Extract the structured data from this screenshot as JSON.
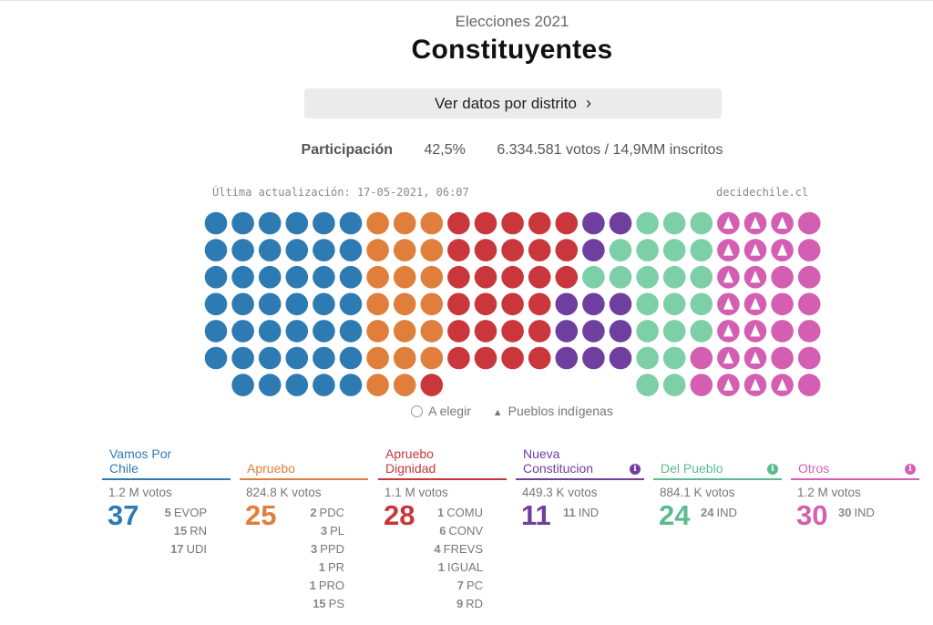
{
  "header": {
    "subtitle": "Elecciones 2021",
    "title": "Constituyentes",
    "district_button": "Ver datos por distrito",
    "chevron": "›"
  },
  "participation": {
    "label": "Participación",
    "percent": "42,5%",
    "detail": "6.334.581 votos / 14,9MM inscritos"
  },
  "updated": "Última actualización: 17-05-2021, 06:07",
  "site": "decidechile.cl",
  "legend": {
    "to_elect": "A elegir",
    "indigenous": "Pueblos indígenas"
  },
  "colors": {
    "blue": "#2e7bb4",
    "orange": "#e07e3c",
    "red": "#c9363b",
    "purple": "#6f3f9f",
    "green": "#7ccfa6",
    "pink": "#d45fb2"
  },
  "hemicycle": {
    "columns": [
      [
        "blue",
        6
      ],
      [
        "blue",
        7
      ],
      [
        "blue",
        7
      ],
      [
        "blue",
        7
      ],
      [
        "blue",
        7
      ],
      [
        "blue",
        7
      ],
      [
        "orange",
        7
      ],
      [
        "orange",
        7
      ],
      [
        "orange",
        7
      ],
      [
        "red",
        6
      ],
      [
        "red",
        6
      ],
      [
        "red",
        6
      ],
      [
        "red",
        6
      ],
      [
        "red",
        6
      ],
      [
        "purple",
        6
      ],
      [
        "purple",
        6
      ],
      [
        "green",
        7
      ],
      [
        "green",
        7
      ],
      [
        "green",
        7
      ],
      [
        "pink",
        7
      ],
      [
        "pink",
        7
      ],
      [
        "pink",
        7
      ],
      [
        "pink",
        7
      ]
    ],
    "column_starts": [
      0,
      0,
      0,
      0,
      0,
      0,
      0,
      0,
      0,
      0,
      0,
      0,
      0,
      0,
      0,
      0,
      0,
      0,
      0,
      0,
      0,
      0,
      0
    ],
    "overrides": [
      {
        "col": 7,
        "row": 1,
        "color": "orange"
      },
      {
        "col": 8,
        "row": 6,
        "color": "red"
      },
      {
        "col": 13,
        "row": 3,
        "color": "purple"
      },
      {
        "col": 13,
        "row": 4,
        "color": "purple"
      },
      {
        "col": 13,
        "row": 5,
        "color": "purple"
      },
      {
        "col": 14,
        "row": 2,
        "color": "green"
      },
      {
        "col": 14,
        "row": 3,
        "color": "purple"
      },
      {
        "col": 15,
        "row": 1,
        "color": "green"
      },
      {
        "col": 15,
        "row": 2,
        "color": "green"
      },
      {
        "col": 18,
        "row": 5,
        "color": "pink"
      },
      {
        "col": 18,
        "row": 6,
        "color": "pink"
      }
    ],
    "empty": [
      {
        "col": 9,
        "row": 6
      },
      {
        "col": 10,
        "row": 6
      },
      {
        "col": 11,
        "row": 6
      },
      {
        "col": 12,
        "row": 6
      },
      {
        "col": 13,
        "row": 6
      },
      {
        "col": 14,
        "row": 6
      },
      {
        "col": 15,
        "row": 6
      }
    ],
    "indigenous_cols": [
      19,
      20,
      21
    ],
    "indigenous_rows": {
      "19": [
        0,
        1,
        2,
        3,
        4,
        5,
        6
      ],
      "20": [
        0,
        1,
        2,
        3,
        4,
        5,
        6
      ],
      "21": [
        0,
        1,
        6
      ]
    }
  },
  "parties": [
    {
      "name": "Vamos Por Chile",
      "color": "#2e7bb4",
      "info": false,
      "votes": "1.2 M votos",
      "seats": "37",
      "subs": [
        [
          "5",
          "EVOP"
        ],
        [
          "15",
          "RN"
        ],
        [
          "17",
          "UDI"
        ]
      ]
    },
    {
      "name": "Apruebo",
      "color": "#e07e3c",
      "info": false,
      "votes": "824.8 K votos",
      "seats": "25",
      "subs": [
        [
          "2",
          "PDC"
        ],
        [
          "3",
          "PL"
        ],
        [
          "3",
          "PPD"
        ],
        [
          "1",
          "PR"
        ],
        [
          "1",
          "PRO"
        ],
        [
          "15",
          "PS"
        ]
      ]
    },
    {
      "name": "Apruebo Dignidad",
      "color": "#c9363b",
      "info": false,
      "votes": "1.1 M votos",
      "seats": "28",
      "subs": [
        [
          "1",
          "COMU"
        ],
        [
          "6",
          "CONV"
        ],
        [
          "4",
          "FREVS"
        ],
        [
          "1",
          "IGUAL"
        ],
        [
          "7",
          "PC"
        ],
        [
          "9",
          "RD"
        ]
      ]
    },
    {
      "name": "Nueva Constitucion",
      "color": "#6f3f9f",
      "info": true,
      "votes": "449.3 K votos",
      "seats": "11",
      "subs": [
        [
          "11",
          "IND"
        ]
      ]
    },
    {
      "name": "Del Pueblo",
      "color": "#5bbb8f",
      "info": true,
      "votes": "884.1 K votos",
      "seats": "24",
      "subs": [
        [
          "24",
          "IND"
        ]
      ]
    },
    {
      "name": "Otros",
      "color": "#d45fb2",
      "info": true,
      "votes": "1.2 M votos",
      "seats": "30",
      "subs": [
        [
          "30",
          "IND"
        ]
      ]
    }
  ]
}
